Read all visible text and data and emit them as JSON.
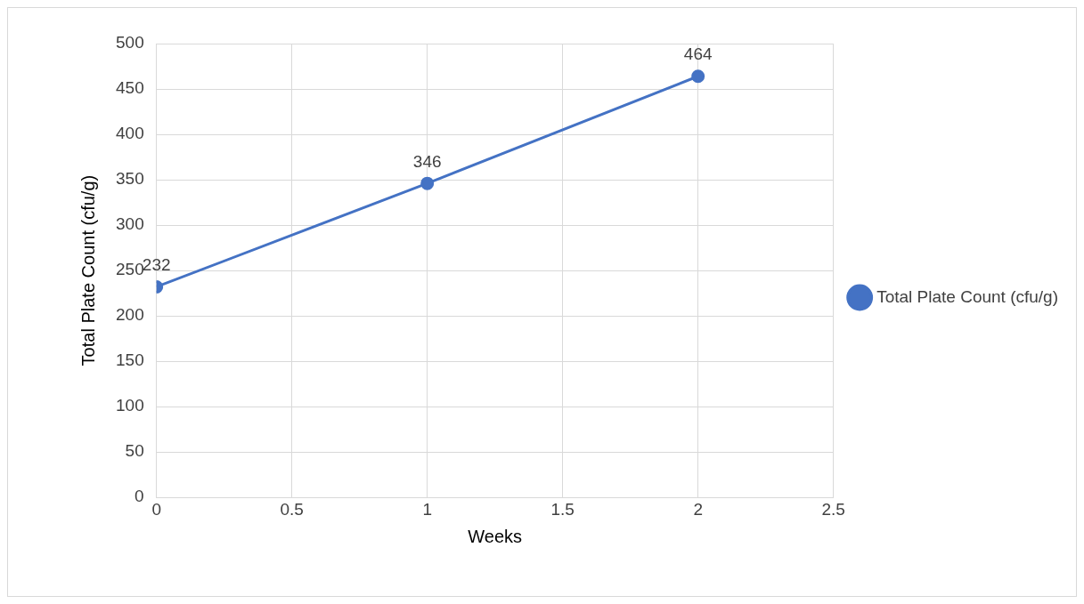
{
  "chart_data": {
    "type": "line",
    "xlabel": "Weeks",
    "ylabel": "Total Plate Count (cfu/g)",
    "x": [
      0,
      1,
      2
    ],
    "series": [
      {
        "name": "Total Plate Count (cfu/g)",
        "color": "#4472c4",
        "values": [
          232,
          346,
          464
        ]
      }
    ],
    "xlim": [
      0,
      2.5
    ],
    "xticks": [
      0,
      0.5,
      1,
      1.5,
      2,
      2.5
    ],
    "ylim": [
      0,
      500
    ],
    "yticks": [
      0,
      50,
      100,
      150,
      200,
      250,
      300,
      350,
      400,
      450,
      500
    ],
    "grid": true,
    "legend": "right",
    "marker": "circle",
    "line_style": "solid",
    "data_labels": true
  }
}
